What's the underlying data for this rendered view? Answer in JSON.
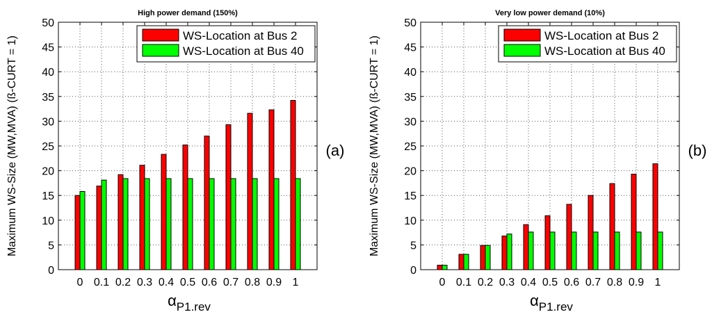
{
  "chart_data": [
    {
      "type": "bar",
      "title": "High power demand (150%)",
      "panel_label": "(a)",
      "ylabel": "Maximum WS-Size (MW,MVA) (ß-CURT = 1)",
      "xlabel_main": "α",
      "xlabel_sub": "P1.rev",
      "categories": [
        "0",
        "0.1",
        "0.2",
        "0.3",
        "0.4",
        "0.5",
        "0.6",
        "0.7",
        "0.8",
        "0.9",
        "1"
      ],
      "ylim": [
        0,
        50
      ],
      "yticks": [
        "0",
        "5",
        "10",
        "15",
        "20",
        "25",
        "30",
        "35",
        "40",
        "45",
        "50"
      ],
      "grid": true,
      "legend_position": "top-right",
      "series": [
        {
          "name": "WS-Location at Bus 2",
          "color": "#ff0000",
          "values": [
            15.0,
            16.9,
            19.2,
            21.1,
            23.3,
            25.2,
            27.0,
            29.3,
            31.6,
            32.3,
            34.2
          ]
        },
        {
          "name": "WS-Location at Bus 40",
          "color": "#00ff00",
          "values": [
            15.8,
            18.1,
            18.4,
            18.4,
            18.4,
            18.4,
            18.4,
            18.4,
            18.4,
            18.4,
            18.4
          ]
        }
      ]
    },
    {
      "type": "bar",
      "title": "Very low power demand (10%)",
      "panel_label": "(b)",
      "ylabel": "Maximum WS-Size (MW,MVA) (ß-CURT = 1)",
      "xlabel_main": "α",
      "xlabel_sub": "P1.rev",
      "categories": [
        "0",
        "0.1",
        "0.2",
        "0.3",
        "0.4",
        "0.5",
        "0.6",
        "0.7",
        "0.8",
        "0.9",
        "1"
      ],
      "ylim": [
        0,
        50
      ],
      "yticks": [
        "0",
        "5",
        "10",
        "15",
        "20",
        "25",
        "30",
        "35",
        "40",
        "45",
        "50"
      ],
      "grid": true,
      "legend_position": "top-right",
      "series": [
        {
          "name": "WS-Location at Bus 2",
          "color": "#ff0000",
          "values": [
            0.9,
            3.1,
            4.9,
            6.8,
            9.1,
            10.9,
            13.2,
            15.0,
            17.4,
            19.3,
            21.4
          ]
        },
        {
          "name": "WS-Location at Bus 40",
          "color": "#00ff00",
          "values": [
            0.9,
            3.1,
            4.9,
            7.2,
            7.6,
            7.6,
            7.6,
            7.6,
            7.6,
            7.6,
            7.6
          ]
        }
      ]
    }
  ]
}
